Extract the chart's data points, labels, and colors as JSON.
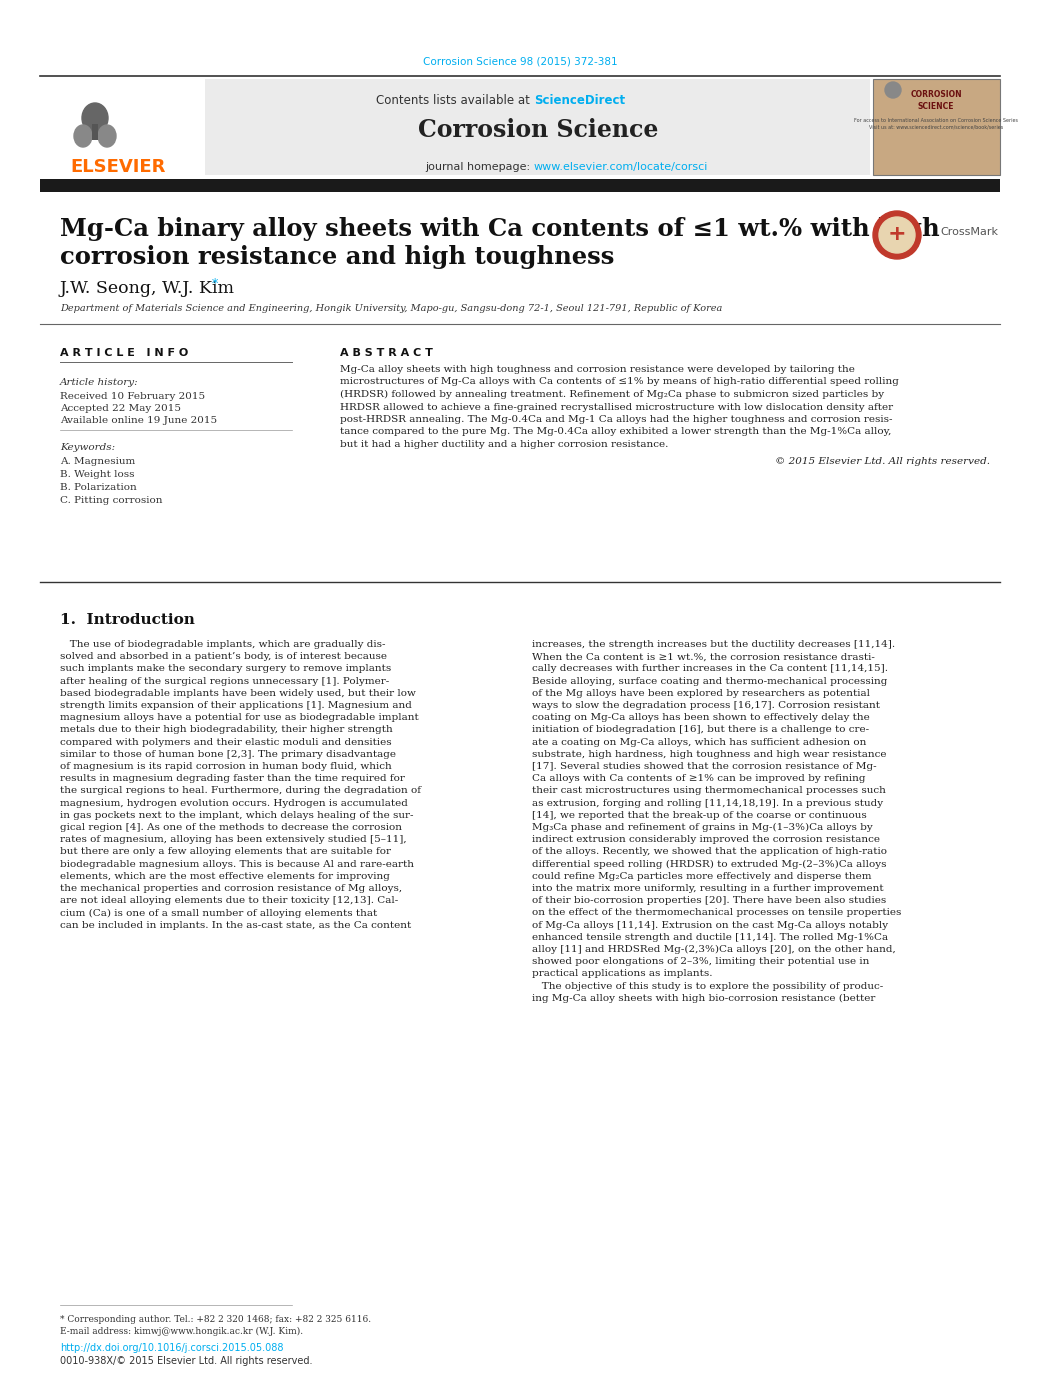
{
  "journal_ref": "Corrosion Science 98 (2015) 372-381",
  "journal_ref_color": "#00AEEF",
  "header_text_normal": "Contents lists available at ",
  "header_text_link": "ScienceDirect",
  "header_link_color": "#00AEEF",
  "journal_name": "Corrosion Science",
  "journal_homepage_normal": "journal homepage: ",
  "journal_homepage_url": "www.elsevier.com/locate/corsci",
  "journal_homepage_url_color": "#00AEEF",
  "elsevier_color": "#FF6B00",
  "separator_color": "#2B2B2B",
  "header_bg_color": "#EBEBEB",
  "article_title_line1": "Mg-Ca binary alloy sheets with Ca contents of ≤1 wt.% with high",
  "article_title_line2": "corrosion resistance and high toughness",
  "authors": "J.W. Seong, W.J. Kim",
  "affiliation": "Department of Materials Science and Engineering, Hongik University, Mapo-gu, Sangsu-dong 72-1, Seoul 121-791, Republic of Korea",
  "article_info_title": "A R T I C L E   I N F O",
  "abstract_title": "A B S T R A C T",
  "article_history_label": "Article history:",
  "received": "Received 10 February 2015",
  "accepted": "Accepted 22 May 2015",
  "available": "Available online 19 June 2015",
  "keywords_label": "Keywords:",
  "keywords": [
    "A. Magnesium",
    "B. Weight loss",
    "B. Polarization",
    "C. Pitting corrosion"
  ],
  "abs_lines": [
    "Mg-Ca alloy sheets with high toughness and corrosion resistance were developed by tailoring the",
    "microstructures of Mg-Ca alloys with Ca contents of ≤1% by means of high-ratio differential speed rolling",
    "(HRDSR) followed by annealing treatment. Refinement of Mg₂Ca phase to submicron sized particles by",
    "HRDSR allowed to achieve a fine-grained recrystallised microstructure with low dislocation density after",
    "post-HRDSR annealing. The Mg-0.4Ca and Mg-1 Ca alloys had the higher toughness and corrosion resis-",
    "tance compared to the pure Mg. The Mg-0.4Ca alloy exhibited a lower strength than the Mg-1%Ca alloy,",
    "but it had a higher ductility and a higher corrosion resistance."
  ],
  "copyright": "© 2015 Elsevier Ltd. All rights reserved.",
  "section_title": "1.  Introduction",
  "col1_lines": [
    "   The use of biodegradable implants, which are gradually dis-",
    "solved and absorbed in a patient’s body, is of interest because",
    "such implants make the secondary surgery to remove implants",
    "after healing of the surgical regions unnecessary [1]. Polymer-",
    "based biodegradable implants have been widely used, but their low",
    "strength limits expansion of their applications [1]. Magnesium and",
    "magnesium alloys have a potential for use as biodegradable implant",
    "metals due to their high biodegradability, their higher strength",
    "compared with polymers and their elastic moduli and densities",
    "similar to those of human bone [2,3]. The primary disadvantage",
    "of magnesium is its rapid corrosion in human body fluid, which",
    "results in magnesium degrading faster than the time required for",
    "the surgical regions to heal. Furthermore, during the degradation of",
    "magnesium, hydrogen evolution occurs. Hydrogen is accumulated",
    "in gas pockets next to the implant, which delays healing of the sur-",
    "gical region [4]. As one of the methods to decrease the corrosion",
    "rates of magnesium, alloying has been extensively studied [5–11],",
    "but there are only a few alloying elements that are suitable for",
    "biodegradable magnesium alloys. This is because Al and rare-earth",
    "elements, which are the most effective elements for improving",
    "the mechanical properties and corrosion resistance of Mg alloys,",
    "are not ideal alloying elements due to their toxicity [12,13]. Cal-",
    "cium (Ca) is one of a small number of alloying elements that",
    "can be included in implants. In the as-cast state, as the Ca content"
  ],
  "col2_lines": [
    "increases, the strength increases but the ductility decreases [11,14].",
    "When the Ca content is ≥1 wt.%, the corrosion resistance drasti-",
    "cally decreases with further increases in the Ca content [11,14,15].",
    "Beside alloying, surface coating and thermo-mechanical processing",
    "of the Mg alloys have been explored by researchers as potential",
    "ways to slow the degradation process [16,17]. Corrosion resistant",
    "coating on Mg-Ca alloys has been shown to effectively delay the",
    "initiation of biodegradation [16], but there is a challenge to cre-",
    "ate a coating on Mg-Ca alloys, which has sufficient adhesion on",
    "substrate, high hardness, high toughness and high wear resistance",
    "[17]. Several studies showed that the corrosion resistance of Mg-",
    "Ca alloys with Ca contents of ≥1% can be improved by refining",
    "their cast microstructures using thermomechanical processes such",
    "as extrusion, forging and rolling [11,14,18,19]. In a previous study",
    "[14], we reported that the break-up of the coarse or continuous",
    "Mg₃Ca phase and refinement of grains in Mg-(1–3%)Ca alloys by",
    "indirect extrusion considerably improved the corrosion resistance",
    "of the alloys. Recently, we showed that the application of high-ratio",
    "differential speed rolling (HRDSR) to extruded Mg-(2–3%)Ca alloys",
    "could refine Mg₂Ca particles more effectively and disperse them",
    "into the matrix more uniformly, resulting in a further improvement",
    "of their bio-corrosion properties [20]. There have been also studies",
    "on the effect of the thermomechanical processes on tensile properties",
    "of Mg-Ca alloys [11,14]. Extrusion on the cast Mg-Ca alloys notably"
  ],
  "col2_extra_lines": [
    "enhanced tensile strength and ductile [11,14]. The rolled Mg-1%Ca",
    "alloy [11] and HRDSRed Mg-(2,3%)Ca alloys [20], on the other hand,",
    "showed poor elongations of 2–3%, limiting their potential use in",
    "practical applications as implants.",
    "   The objective of this study is to explore the possibility of produc-",
    "ing Mg-Ca alloy sheets with high bio-corrosion resistance (better"
  ],
  "footer_footnote": "* Corresponding author. Tel.: +82 2 320 1468; fax: +82 2 325 6116.",
  "footer_email": "E-mail address: kimwj@www.hongik.ac.kr (W.J. Kim).",
  "footer_doi": "http://dx.doi.org/10.1016/j.corsci.2015.05.088",
  "footer_doi_color": "#00AEEF",
  "footer_issn": "0010-938X/© 2015 Elsevier Ltd. All rights reserved.",
  "bg_color": "#FFFFFF",
  "text_color": "#000000",
  "link_ref_color": "#00AEEF"
}
